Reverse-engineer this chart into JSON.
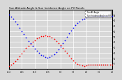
{
  "title": "Sun Altitude Angle & Sun Incidence Angle on PV Panels",
  "title_fontsize": 2.8,
  "legend_labels": [
    "Sun Alt Angle",
    "Sun Incidence Angle on PV"
  ],
  "legend_colors": [
    "red",
    "blue"
  ],
  "background_color": "#d8d8d8",
  "grid_color": "white",
  "tick_fontsize": 1.8,
  "red_x": [
    0,
    1,
    2,
    3,
    4,
    5,
    6,
    7,
    8,
    9,
    10,
    11,
    12,
    13,
    14,
    15,
    16,
    17,
    18,
    19,
    20,
    21,
    22,
    23,
    24,
    25,
    26,
    27,
    28,
    29,
    30,
    31,
    32,
    33,
    34,
    35,
    36,
    37,
    38,
    39,
    40,
    41,
    42,
    43,
    44,
    45,
    46,
    47,
    48
  ],
  "red_y": [
    -5,
    -3,
    0,
    4,
    8,
    13,
    18,
    23,
    28,
    32,
    36,
    40,
    43,
    46,
    48,
    50,
    51,
    52,
    51,
    50,
    48,
    45,
    42,
    38,
    34,
    29,
    24,
    19,
    14,
    9,
    5,
    2,
    -1,
    -3,
    -4,
    -5,
    -4,
    -3,
    -3,
    -2,
    -2,
    -2,
    -2,
    -2,
    -2,
    -2,
    -2,
    -2,
    -2
  ],
  "blue_x": [
    0,
    1,
    2,
    3,
    4,
    5,
    6,
    7,
    8,
    9,
    10,
    11,
    12,
    13,
    14,
    15,
    16,
    17,
    18,
    19,
    20,
    21,
    22,
    23,
    24,
    25,
    26,
    27,
    28,
    29,
    30,
    31,
    32,
    33,
    34,
    35,
    36,
    37,
    38,
    39,
    40,
    41,
    42,
    43,
    44,
    45,
    46,
    47,
    48
  ],
  "blue_y": [
    90,
    87,
    83,
    78,
    72,
    66,
    60,
    54,
    48,
    42,
    37,
    32,
    27,
    23,
    19,
    16,
    14,
    12,
    11,
    12,
    14,
    17,
    21,
    26,
    31,
    37,
    43,
    49,
    55,
    61,
    66,
    71,
    75,
    78,
    81,
    83,
    85,
    86,
    87,
    88,
    88,
    88,
    88,
    88,
    88,
    88,
    88,
    88,
    88
  ],
  "ylim": [
    -10,
    100
  ],
  "xlim": [
    0,
    48
  ],
  "ytick_vals": [
    0,
    10,
    20,
    30,
    40,
    50,
    60,
    70,
    80,
    90
  ],
  "xtick_positions": [
    0,
    6,
    12,
    18,
    24,
    30,
    36,
    42,
    48
  ],
  "xtick_labels": [
    "21:4",
    "22:1",
    "23:0",
    "23:5",
    "0:4",
    "1:3",
    "2:2",
    "3:1",
    "4:0"
  ],
  "marker_size": 1.5
}
